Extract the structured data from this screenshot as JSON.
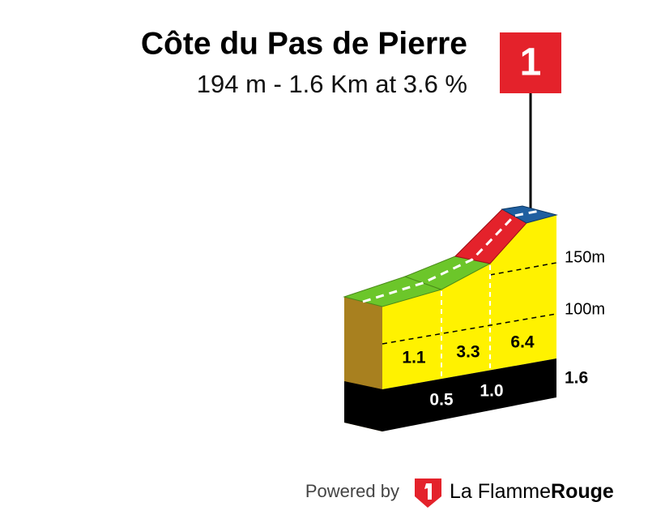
{
  "header": {
    "title": "Côte du Pas de Pierre",
    "subtitle": "194 m - 1.6 Km at 3.6 %"
  },
  "flag": {
    "label": "1"
  },
  "profile": {
    "gradients": [
      "1.1",
      "3.3",
      "6.4"
    ],
    "distances": [
      "0.5",
      "1.0",
      "1.6"
    ],
    "elevation_labels": [
      "150m",
      "100m"
    ]
  },
  "footer": {
    "powered_by": "Powered by",
    "brand_prefix": "La Flamme",
    "brand_suffix": "Rouge"
  }
}
